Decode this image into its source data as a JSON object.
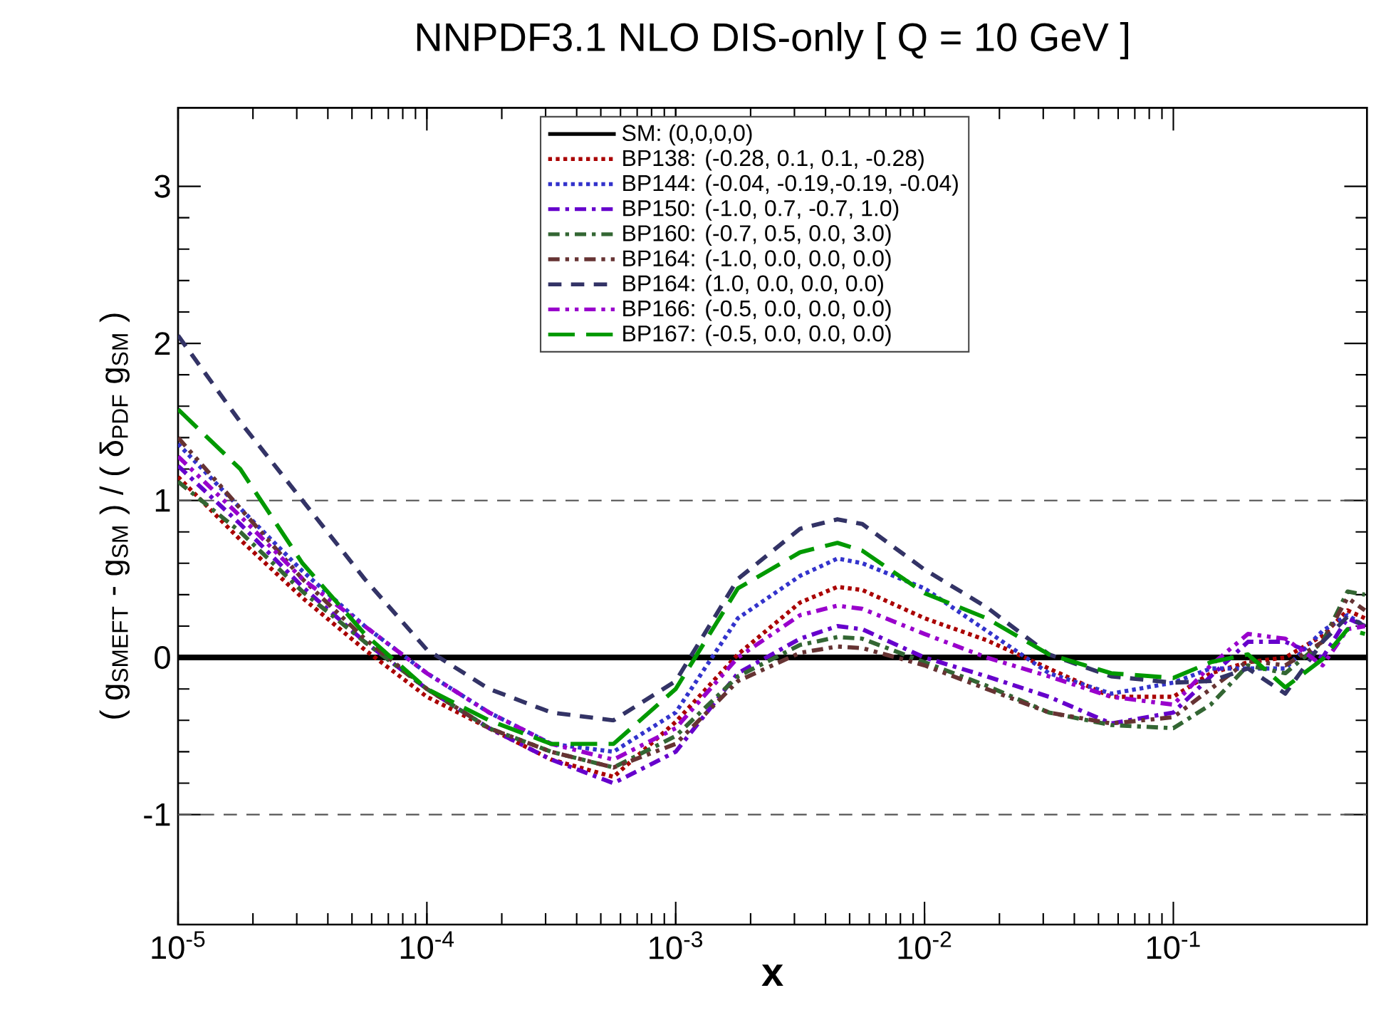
{
  "chart_data": {
    "type": "line",
    "title": "NNPDF3.1 NLO DIS-only [ Q = 10 GeV ]",
    "xlabel": "x",
    "ylabel": "( g$_{SMEFT}$ - g$_{SM}$ ) / ( δ$_{PDF}$ g$_{SM}$ )",
    "log": "x",
    "xlim": [
      1e-05,
      0.6
    ],
    "ylim": [
      -1.7,
      3.5
    ],
    "xticks": [
      {
        "value": 1e-05,
        "label": "10$^{-5}$"
      },
      {
        "value": 0.0001,
        "label": "10$^{-4}$"
      },
      {
        "value": 0.001,
        "label": "10$^{-3}$"
      },
      {
        "value": 0.01,
        "label": "10$^{-2}$"
      },
      {
        "value": 0.1,
        "label": "10$^{-1}$"
      }
    ],
    "yticks": [
      -1,
      0,
      1,
      2,
      3
    ],
    "legend": "top",
    "grid": false,
    "marker": "none",
    "ref_lines": [
      {
        "axis": "y",
        "value": 1,
        "color": "#555555",
        "line_style": "dashed"
      },
      {
        "axis": "y",
        "value": -1,
        "color": "#555555",
        "line_style": "dashed"
      }
    ],
    "x": [
      1e-05,
      1.778e-05,
      3.162e-05,
      5.623e-05,
      0.0001,
      0.0001778,
      0.0003162,
      0.0005623,
      0.001,
      0.001778,
      0.003162,
      0.004467,
      0.005623,
      0.01,
      0.01778,
      0.03162,
      0.05623,
      0.1,
      0.1413,
      0.1995,
      0.2818,
      0.3981,
      0.5012,
      0.5888
    ],
    "series": [
      {
        "name": "SM: (0,0,0,0)",
        "color": "#000000",
        "line_style": "solid",
        "x": [
          1e-05,
          0.6
        ],
        "values": [
          0,
          0
        ]
      },
      {
        "name": "BP138: (-0.28, 0.1, 0.1, -0.28)",
        "color": "#aa0000",
        "line_style": "dotted",
        "values": [
          1.15,
          0.75,
          0.38,
          0.05,
          -0.25,
          -0.45,
          -0.65,
          -0.76,
          -0.41,
          0.02,
          0.35,
          0.45,
          0.43,
          0.25,
          0.11,
          -0.07,
          -0.25,
          -0.25,
          -0.1,
          -0.03,
          0.0,
          0.14,
          0.3,
          0.25
        ]
      },
      {
        "name": "BP144: (-0.04, -0.19,-0.19, -0.04)",
        "color": "#3333cc",
        "line_style": "dotted",
        "values": [
          1.36,
          0.95,
          0.55,
          0.2,
          -0.1,
          -0.35,
          -0.55,
          -0.6,
          -0.35,
          0.25,
          0.52,
          0.63,
          0.6,
          0.44,
          0.17,
          -0.1,
          -0.23,
          -0.16,
          -0.07,
          -0.07,
          -0.07,
          0.17,
          0.27,
          0.2
        ]
      },
      {
        "name": "BP150: (-1.0, 0.7, -0.7, 1.0)",
        "color": "#6600cc",
        "line_style": "dashdot",
        "values": [
          1.22,
          0.85,
          0.45,
          0.1,
          -0.2,
          -0.45,
          -0.65,
          -0.8,
          -0.6,
          -0.1,
          0.12,
          0.2,
          0.18,
          0.0,
          -0.12,
          -0.25,
          -0.42,
          -0.35,
          -0.12,
          0.1,
          0.1,
          0.0,
          0.25,
          0.2
        ]
      },
      {
        "name": "BP160: (-0.7, 0.5, 0.0, 3.0)",
        "color": "#336633",
        "line_style": "dashdot",
        "values": [
          1.12,
          0.8,
          0.42,
          0.1,
          -0.2,
          -0.45,
          -0.6,
          -0.7,
          -0.5,
          -0.12,
          0.08,
          0.13,
          0.12,
          -0.03,
          -0.18,
          -0.35,
          -0.43,
          -0.45,
          -0.3,
          -0.05,
          -0.1,
          0.1,
          0.42,
          0.4
        ]
      },
      {
        "name": "BP164: (-1.0, 0.0, 0.0, 0.0)",
        "color": "#663333",
        "line_style": "dashdotdot",
        "values": [
          1.4,
          0.95,
          0.5,
          0.12,
          -0.2,
          -0.45,
          -0.6,
          -0.7,
          -0.55,
          -0.15,
          0.03,
          0.07,
          0.06,
          -0.05,
          -0.2,
          -0.35,
          -0.42,
          -0.38,
          -0.2,
          -0.02,
          -0.05,
          0.1,
          0.38,
          0.3
        ]
      },
      {
        "name": "BP164: (1.0, 0.0, 0.0, 0.0)",
        "color": "#333366",
        "line_style": "dashed",
        "values": [
          2.05,
          1.5,
          1.0,
          0.5,
          0.05,
          -0.2,
          -0.35,
          -0.4,
          -0.15,
          0.5,
          0.82,
          0.88,
          0.85,
          0.56,
          0.32,
          0.02,
          -0.12,
          -0.16,
          -0.15,
          -0.07,
          -0.23,
          0.1,
          0.26,
          0.2
        ]
      },
      {
        "name": "BP166: (-0.5, 0.0, 0.0, 0.0)",
        "color": "#9900cc",
        "line_style": "dashdotdot",
        "values": [
          1.28,
          0.9,
          0.5,
          0.2,
          -0.1,
          -0.35,
          -0.55,
          -0.65,
          -0.45,
          0.0,
          0.27,
          0.33,
          0.31,
          0.15,
          0.0,
          -0.12,
          -0.25,
          -0.3,
          -0.05,
          0.15,
          0.12,
          -0.05,
          0.18,
          0.2
        ]
      },
      {
        "name": "BP167: (-0.5, 0.0, 0.0, 0.0)",
        "color": "#009900",
        "line_style": "longdash",
        "values": [
          1.58,
          1.2,
          0.6,
          0.15,
          -0.2,
          -0.4,
          -0.55,
          -0.55,
          -0.2,
          0.44,
          0.67,
          0.73,
          0.68,
          0.41,
          0.25,
          0.02,
          -0.1,
          -0.13,
          -0.03,
          0.02,
          -0.19,
          -0.01,
          0.18,
          0.15
        ]
      }
    ]
  }
}
